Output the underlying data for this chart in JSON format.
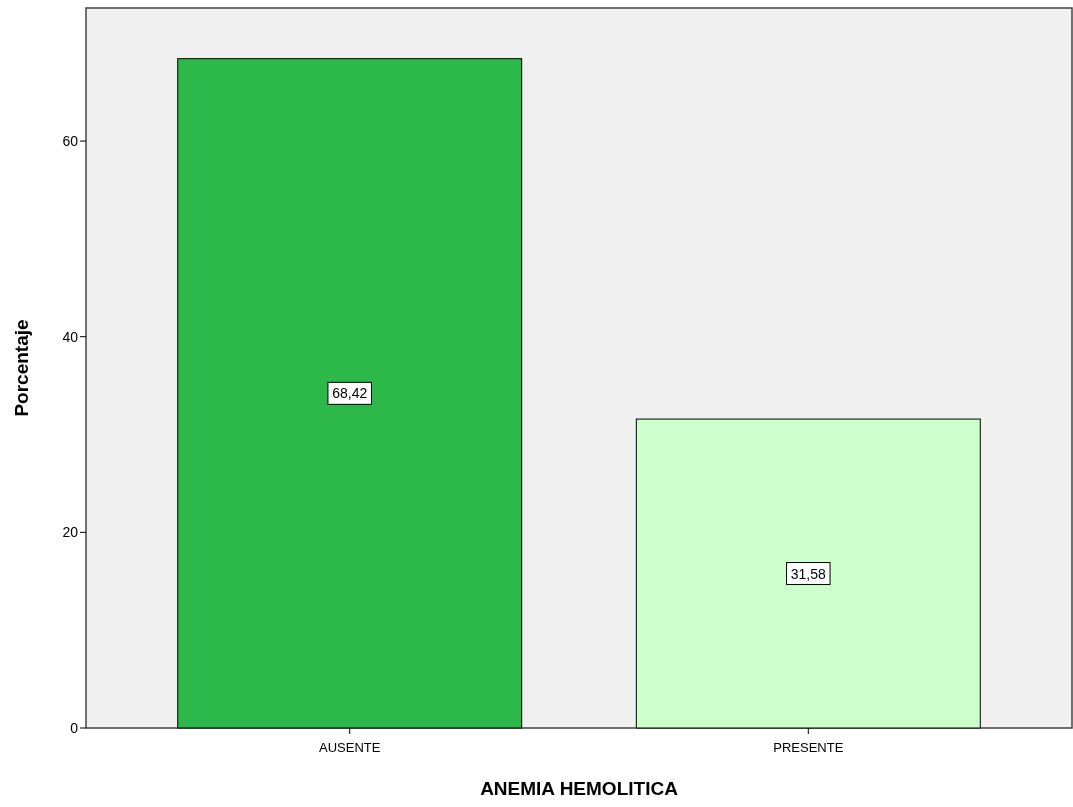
{
  "chart_data": {
    "type": "bar",
    "xlabel": "ANEMIA HEMOLITICA",
    "ylabel": "Porcentaje",
    "categories": [
      "AUSENTE",
      "PRESENTE"
    ],
    "values": [
      68.42,
      31.58
    ],
    "colors": [
      "#2db84a",
      "#ccffcc"
    ],
    "value_labels": [
      "68,42",
      "31,58"
    ],
    "ylim": [
      0,
      73.6
    ],
    "yticks": [
      0,
      20,
      40,
      60
    ],
    "grid": false
  }
}
